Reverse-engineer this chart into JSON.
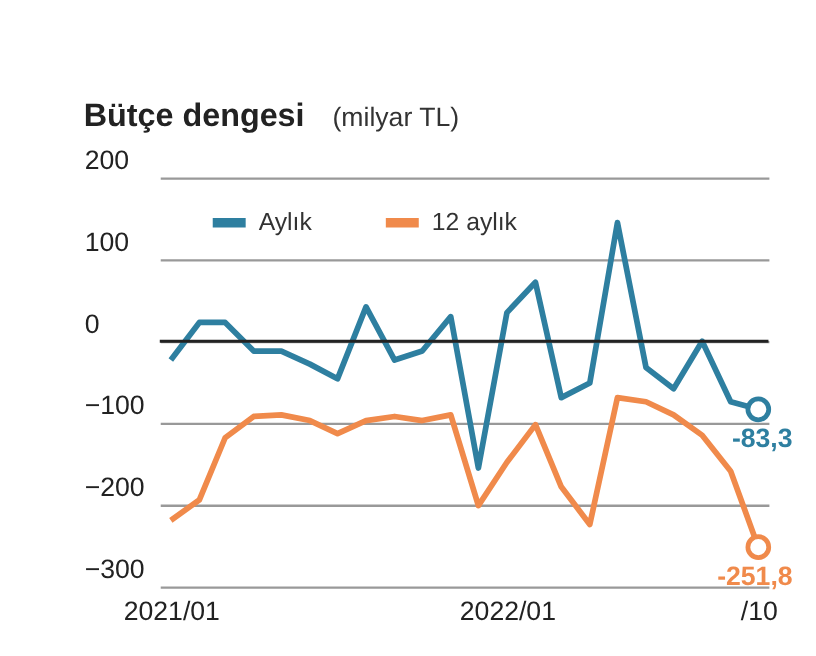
{
  "chart_data": {
    "type": "line",
    "title": "Bütçe dengesi",
    "subtitle": "(milyar TL)",
    "x": [
      "2021-01",
      "2021-02",
      "2021-03",
      "2021-04",
      "2021-05",
      "2021-06",
      "2021-07",
      "2021-08",
      "2021-09",
      "2021-10",
      "2021-11",
      "2021-12",
      "2022-01",
      "2022-02",
      "2022-03",
      "2022-04",
      "2022-05",
      "2022-06",
      "2022-07",
      "2022-08",
      "2022-09",
      "2022-10"
    ],
    "series": [
      {
        "name": "Aylık",
        "color": "#2e7fa0",
        "values": [
          -23,
          23,
          23,
          -12,
          -12,
          -28,
          -46,
          42,
          -23,
          -12,
          30,
          -155,
          35,
          72,
          -69,
          -51,
          145,
          -32,
          -58,
          0,
          -74,
          -83.3
        ],
        "value_labels": [
          null,
          null,
          null,
          null,
          null,
          null,
          null,
          null,
          null,
          null,
          null,
          null,
          null,
          null,
          null,
          null,
          null,
          null,
          null,
          null,
          null,
          "-83,3"
        ]
      },
      {
        "name": "12 aylık",
        "color": "#f08a4b",
        "values": [
          -219,
          -194,
          -118,
          -92,
          -90,
          -97,
          -113,
          -97,
          -92,
          -97,
          -90,
          -201,
          -148,
          -102,
          -178,
          -224,
          -69,
          -74,
          -90,
          -115,
          -159,
          -251.8
        ],
        "value_labels": [
          null,
          null,
          null,
          null,
          null,
          null,
          null,
          null,
          null,
          null,
          null,
          null,
          null,
          null,
          null,
          null,
          null,
          null,
          null,
          null,
          null,
          "-251,8"
        ]
      }
    ],
    "xlim": [
      "2020-12-20",
      "2022-10-12"
    ],
    "xticks": [
      {
        "value": "2021-01",
        "label": "2021/01"
      },
      {
        "value": "2022-01",
        "label": "2022/01"
      },
      {
        "value": "2022-10",
        "label": "/10"
      }
    ],
    "ylim": [
      -300,
      200
    ],
    "yticks": [
      -300,
      -200,
      -100,
      0,
      100,
      200
    ],
    "grid": "y",
    "legend": "top left",
    "marker": "none",
    "line_style": "solid"
  }
}
